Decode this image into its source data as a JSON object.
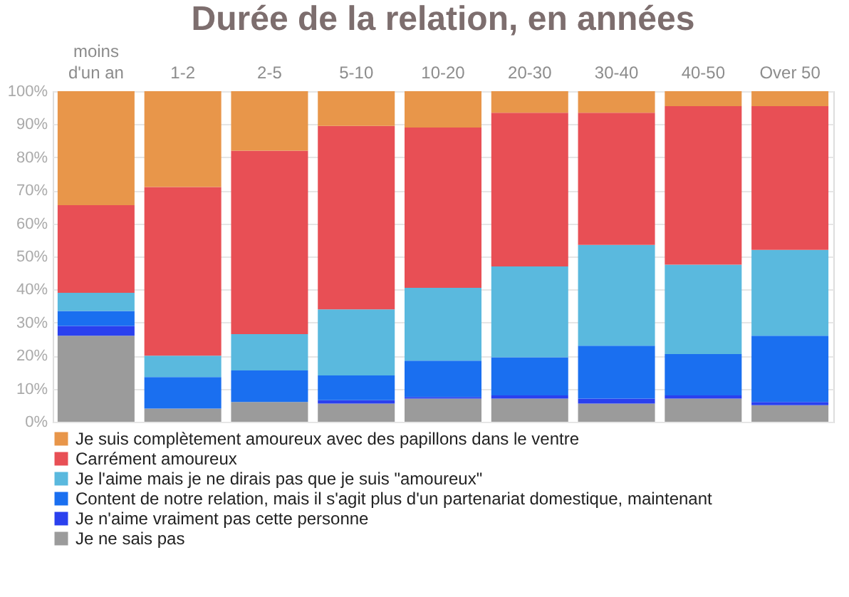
{
  "chart_data": {
    "type": "bar",
    "stacked": true,
    "title": "Durée de la relation, en années",
    "categories": [
      "moins d'un an",
      "1-2",
      "2-5",
      "5-10",
      "10-20",
      "20-30",
      "30-40",
      "40-50",
      "Over 50"
    ],
    "series": [
      {
        "name": "Je ne sais pas",
        "color": "#9b9b9b",
        "values": [
          26,
          4,
          6,
          5.5,
          7,
          7,
          5.5,
          7,
          5
        ]
      },
      {
        "name": "Je n'aime vraiment pas cette personne",
        "color": "#2a40ee",
        "values": [
          3,
          0,
          0,
          1,
          0.5,
          1,
          1.5,
          1,
          1
        ]
      },
      {
        "name": "Content de notre relation, mais il s'agit plus d'un partenariat domestique, maintenant",
        "color": "#1a6ff0",
        "values": [
          4.5,
          9.5,
          9.5,
          7.5,
          11,
          11.5,
          16,
          12.5,
          20
        ]
      },
      {
        "name": "Je l'aime mais je ne dirais pas que  je suis \"amoureux\"",
        "color": "#5ab9de",
        "values": [
          5.5,
          6.5,
          11,
          20,
          22,
          27.5,
          30.5,
          27,
          26
        ]
      },
      {
        "name": "Carrément amoureux",
        "color": "#e84f55",
        "values": [
          26.5,
          51,
          55.5,
          55.5,
          48.5,
          46.5,
          40,
          48,
          43.5
        ]
      },
      {
        "name": "Je suis complètement amoureux avec des papillons dans le ventre",
        "color": "#e8964a",
        "values": [
          34.5,
          29,
          18,
          10.5,
          11,
          6.5,
          6.5,
          4.5,
          4.5
        ]
      }
    ],
    "ylim": [
      0,
      100
    ],
    "yticks": [
      {
        "value": 0,
        "label": "0%"
      },
      {
        "value": 10,
        "label": "10%"
      },
      {
        "value": 20,
        "label": "20%"
      },
      {
        "value": 30,
        "label": "30%"
      },
      {
        "value": 40,
        "label": "40%"
      },
      {
        "value": 50,
        "label": "50%"
      },
      {
        "value": 60,
        "label": "60%"
      },
      {
        "value": 70,
        "label": "70%"
      },
      {
        "value": 80,
        "label": "80%"
      },
      {
        "value": 90,
        "label": "90%"
      },
      {
        "value": 100,
        "label": "100%"
      }
    ],
    "grid": "y",
    "legend": "bottom"
  }
}
